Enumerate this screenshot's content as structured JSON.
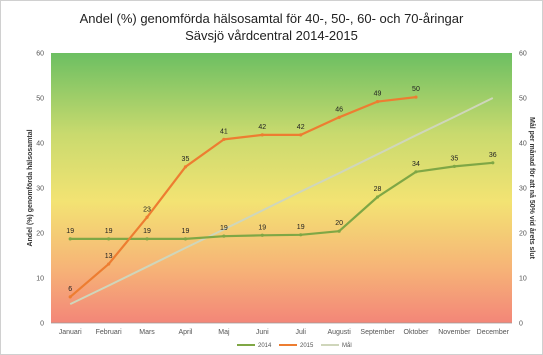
{
  "chart_data": {
    "type": "line",
    "title": "Andel (%) genomförda hälsosamtal för 40-, 50-, 60- och 70-åringar",
    "subtitle": "Sävsjö vårdcentral 2014-2015",
    "ylabel": "Andel (%) genomförda hälsosamtal",
    "y2label": "Mål per månad för att nå 50% vid årets slut",
    "ylim": [
      0,
      60
    ],
    "y2lim": [
      0,
      60
    ],
    "yticks": [
      "0",
      "10",
      "20",
      "30",
      "40",
      "50",
      "60"
    ],
    "y2ticks": [
      "0",
      "10",
      "20",
      "30",
      "40",
      "50",
      "60"
    ],
    "categories": [
      "Januari",
      "Februari",
      "Mars",
      "April",
      "Maj",
      "Juni",
      "Juli",
      "Augusti",
      "September",
      "Oktober",
      "November",
      "December"
    ],
    "series": [
      {
        "name": "2014",
        "color": "#7fa745",
        "values": [
          19,
          19,
          19,
          19,
          19,
          19,
          19,
          20,
          28,
          34,
          35,
          36
        ],
        "labels": [
          "19",
          "19",
          "19",
          "19",
          "19",
          "19",
          "19",
          "20",
          "28",
          "34",
          "35",
          "36"
        ],
        "plotted": [
          18.7,
          18.7,
          18.7,
          18.7,
          19.3,
          19.5,
          19.6,
          20.4,
          28,
          33.6,
          34.8,
          35.6
        ]
      },
      {
        "name": "2015",
        "color": "#ed7d31",
        "values": [
          6,
          13,
          23,
          35,
          41,
          42,
          42,
          46,
          49,
          50,
          null,
          null
        ],
        "labels": [
          "6",
          "13",
          "23",
          "35",
          "41",
          "42",
          "42",
          "46",
          "49",
          "50",
          "",
          ""
        ],
        "plotted": [
          5.8,
          13.1,
          23.5,
          34.7,
          40.8,
          41.8,
          41.8,
          45.7,
          49.2,
          50.2,
          null,
          null
        ]
      },
      {
        "name": "Mål",
        "color": "#cfd6bb",
        "values": [
          4.2,
          8.3,
          12.5,
          16.7,
          20.8,
          25,
          29.2,
          33.3,
          37.5,
          41.7,
          45.8,
          50
        ],
        "axis": "right"
      }
    ],
    "background": "gradient green (top) to yellow to red (bottom)",
    "legend_position": "bottom",
    "grid": false
  }
}
